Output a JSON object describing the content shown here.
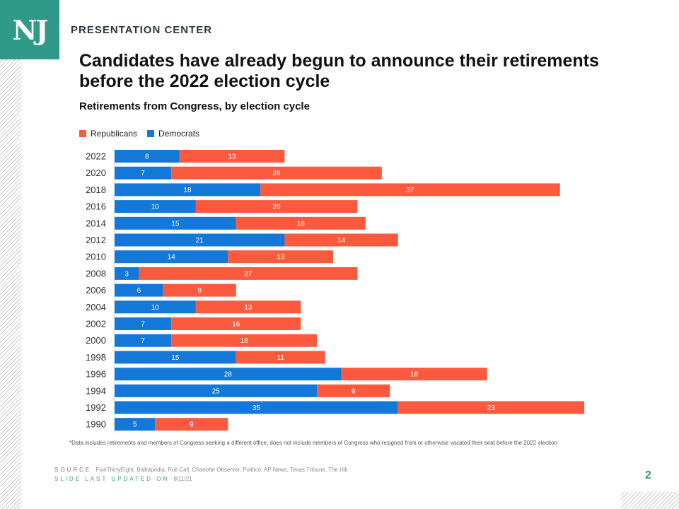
{
  "logo": {
    "text": "NJ"
  },
  "header": {
    "label": "PRESENTATION CENTER"
  },
  "title": "Candidates have already begun to announce their retirements before the 2022 election cycle",
  "subtitle": "Retirements from Congress, by election cycle",
  "colors": {
    "republicans": "#fb5a3e",
    "democrats": "#1378d8",
    "brand": "#2e9a87"
  },
  "legend": {
    "republicans": "Republicans",
    "democrats": "Democrats"
  },
  "chart_data": {
    "type": "bar",
    "orientation": "horizontal",
    "stacked": true,
    "title": "Retirements from Congress, by election cycle",
    "xlabel": "",
    "ylabel": "",
    "categories": [
      "2022",
      "2020",
      "2018",
      "2016",
      "2014",
      "2012",
      "2010",
      "2008",
      "2006",
      "2004",
      "2002",
      "2000",
      "1998",
      "1996",
      "1994",
      "1992",
      "1990"
    ],
    "series": [
      {
        "name": "Democrats",
        "values": [
          8,
          7,
          18,
          10,
          15,
          21,
          14,
          3,
          6,
          10,
          7,
          7,
          15,
          28,
          25,
          35,
          5
        ]
      },
      {
        "name": "Republicans",
        "values": [
          13,
          26,
          37,
          20,
          16,
          14,
          13,
          27,
          9,
          13,
          16,
          18,
          11,
          18,
          9,
          23,
          9
        ]
      }
    ],
    "xlim": [
      0,
      58
    ],
    "legend_position": "top-left",
    "grid": false
  },
  "footnote": "*Data includes retirements and members of Congress seeking a different office; does not include members of Congress who resigned  from or otherwise  vacated their seat before the 2022 election",
  "source": {
    "label": "SOURCE",
    "text": "FiveThirtyEight, Ballotpedia, Roll Call, Charlotte Observer, Politico, AP News, Texas Tribune, The Hill"
  },
  "updated": {
    "label": "SLIDE LAST UPDATED ON",
    "date": "8/11/21"
  },
  "page_number": "2"
}
